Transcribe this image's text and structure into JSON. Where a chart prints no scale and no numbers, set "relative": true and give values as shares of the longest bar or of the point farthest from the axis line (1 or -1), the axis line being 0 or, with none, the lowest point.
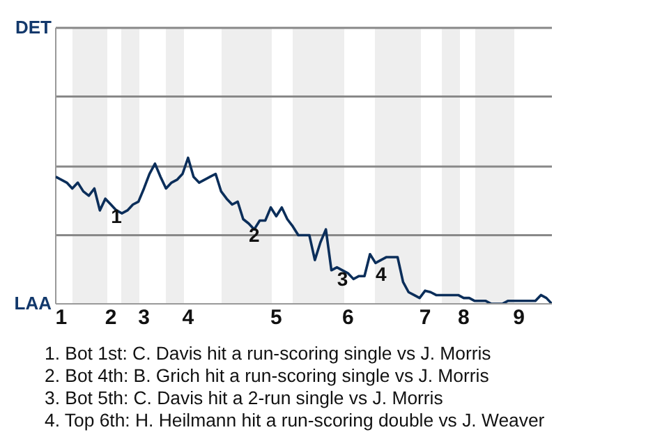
{
  "chart_data": {
    "type": "line",
    "relative": true,
    "categories": [
      null,
      "1",
      null,
      null,
      null,
      null,
      null,
      null,
      null,
      null,
      "2",
      null,
      null,
      null,
      null,
      null,
      "3",
      null,
      null,
      null,
      null,
      null,
      null,
      null,
      "4",
      null,
      null,
      null,
      null,
      null,
      null,
      null,
      null,
      null,
      null,
      null,
      null,
      null,
      null,
      null,
      "5",
      null,
      null,
      null,
      null,
      null,
      null,
      null,
      null,
      null,
      null,
      null,
      null,
      "6",
      null,
      null,
      null,
      null,
      null,
      null,
      null,
      null,
      null,
      null,
      null,
      null,
      null,
      "7",
      null,
      null,
      null,
      null,
      null,
      null,
      "8",
      null,
      null,
      null,
      null,
      null,
      null,
      null,
      null,
      null,
      "9",
      null,
      null,
      null,
      null,
      null,
      null
    ],
    "series": [
      {
        "color": "#0b2e5a",
        "values": [
          0.87,
          0.85,
          0.83,
          0.79,
          0.83,
          0.77,
          0.74,
          0.79,
          0.64,
          0.72,
          0.68,
          0.64,
          0.62,
          0.64,
          0.68,
          0.7,
          0.79,
          0.89,
          0.96,
          0.87,
          0.79,
          0.83,
          0.85,
          0.89,
          1,
          0.87,
          0.83,
          0.85,
          0.87,
          0.89,
          0.77,
          0.72,
          0.68,
          0.7,
          0.58,
          0.55,
          0.51,
          0.57,
          0.57,
          0.66,
          0.6,
          0.66,
          0.58,
          0.53,
          0.47,
          0.47,
          0.47,
          0.3,
          0.42,
          0.51,
          0.23,
          0.25,
          0.23,
          0.21,
          0.17,
          0.19,
          0.19,
          0.34,
          0.28,
          0.3,
          0.32,
          0.32,
          0.32,
          0.15,
          0.08,
          0.06,
          0.04,
          0.09,
          0.08,
          0.06,
          0.06,
          0.06,
          0.06,
          0.06,
          0.04,
          0.04,
          0.02,
          0.02,
          0.02,
          0,
          0,
          0,
          0.02,
          0.02,
          0.02,
          0.02,
          0.02,
          0.02,
          0.06,
          0.04,
          0
        ]
      }
    ],
    "marker": "none",
    "line_style": "solid",
    "ref_lines": [
      {
        "axis": "y",
        "value": 0.47,
        "color": "#888888"
      },
      {
        "axis": "y",
        "value": 0.94,
        "color": "#888888"
      },
      {
        "axis": "y",
        "value": 1.42,
        "color": "#888888"
      },
      {
        "axis": "y",
        "value": 1.89,
        "color": "#888888"
      }
    ],
    "annotations": [
      "DET",
      "LAA",
      {
        "text": "1",
        "y": 0.68
      },
      {
        "text": "2",
        "y": 0.55
      },
      {
        "text": "3",
        "y": 0.25
      },
      {
        "text": "4",
        "y": 0.28
      },
      "1. Bot 1st: C. Davis hit a run-scoring single vs J. Morris",
      "2. Bot 4th: B. Grich hit a run-scoring single vs J. Morris",
      "3. Bot 5th: C. Davis hit a 2-run single vs J. Morris",
      "4. Top 6th: H. Heilmann hit a run-scoring double vs J. Weaver"
    ]
  }
}
